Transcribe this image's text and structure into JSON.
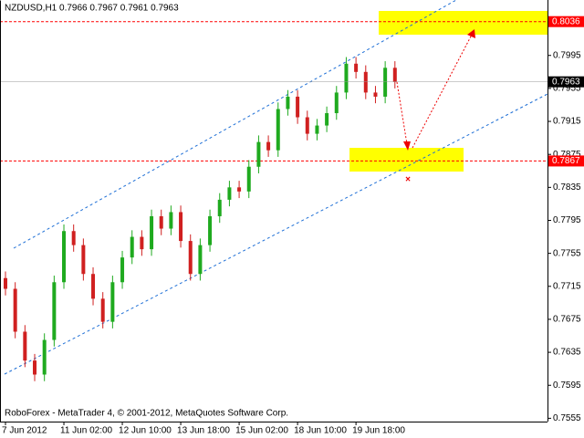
{
  "chart_data": {
    "type": "candlestick",
    "title": "NZDUSD,H1  0.7966 0.7967 0.7961 0.7963",
    "footer": "RoboForex - MetaTrader 4, © 2001-2012, MetaQuotes Software Corp.",
    "categories": [
      "7 Jun 2012",
      null,
      null,
      null,
      null,
      null,
      "11 Jun 02:00",
      null,
      null,
      null,
      null,
      null,
      "12 Jun 10:00",
      null,
      null,
      null,
      null,
      null,
      "13 Jun 18:00",
      null,
      null,
      null,
      null,
      null,
      "15 Jun 02:00",
      null,
      null,
      null,
      null,
      null,
      "18 Jun 10:00",
      null,
      null,
      null,
      null,
      null,
      "19 Jun 18:00",
      null,
      null,
      null,
      null
    ],
    "open": [
      0.7725,
      0.7712,
      0.766,
      0.7625,
      0.7608,
      0.765,
      0.772,
      0.7782,
      0.7765,
      0.773,
      0.77,
      0.7672,
      0.772,
      0.775,
      0.7775,
      0.776,
      0.78,
      0.7785,
      0.7805,
      0.777,
      0.773,
      0.7765,
      0.78,
      0.782,
      0.7835,
      0.783,
      0.786,
      0.789,
      0.788,
      0.793,
      0.7945,
      0.792,
      0.79,
      0.791,
      0.7925,
      0.795,
      0.7985,
      0.7975,
      0.795,
      0.7945,
      0.798
    ],
    "high": [
      0.7733,
      0.772,
      0.7668,
      0.7633,
      0.7658,
      0.7728,
      0.779,
      0.779,
      0.7773,
      0.7738,
      0.7708,
      0.7728,
      0.7758,
      0.7783,
      0.7783,
      0.7808,
      0.7808,
      0.7813,
      0.7813,
      0.7778,
      0.7773,
      0.7808,
      0.7828,
      0.7843,
      0.7843,
      0.7868,
      0.7898,
      0.7898,
      0.7938,
      0.7953,
      0.7953,
      0.7928,
      0.7918,
      0.7933,
      0.7958,
      0.7993,
      0.7993,
      0.7983,
      0.7958,
      0.7988,
      0.7988
    ],
    "low": [
      0.7704,
      0.7652,
      0.7617,
      0.76,
      0.76,
      0.7642,
      0.7712,
      0.7757,
      0.7722,
      0.7692,
      0.7664,
      0.7664,
      0.7712,
      0.7742,
      0.7752,
      0.7752,
      0.7777,
      0.7777,
      0.7762,
      0.7722,
      0.7722,
      0.7757,
      0.7792,
      0.7812,
      0.7822,
      0.7822,
      0.7852,
      0.7872,
      0.7872,
      0.7922,
      0.7912,
      0.7892,
      0.7892,
      0.7902,
      0.7917,
      0.7942,
      0.7967,
      0.7942,
      0.7937,
      0.7937,
      0.7955
    ],
    "close": [
      0.7712,
      0.766,
      0.7625,
      0.7608,
      0.765,
      0.772,
      0.7782,
      0.7765,
      0.773,
      0.77,
      0.7672,
      0.772,
      0.775,
      0.7775,
      0.776,
      0.78,
      0.7785,
      0.7805,
      0.777,
      0.773,
      0.7765,
      0.78,
      0.782,
      0.7835,
      0.783,
      0.786,
      0.789,
      0.788,
      0.793,
      0.7945,
      0.792,
      0.79,
      0.791,
      0.7925,
      0.795,
      0.7985,
      0.7975,
      0.795,
      0.7945,
      0.798,
      0.7963
    ],
    "up_color": "#1faa1f",
    "down_color": "#d02020",
    "ylim": [
      0.7551,
      0.806
    ],
    "yticks": [
      0.7555,
      0.7595,
      0.7635,
      0.7675,
      0.7715,
      0.7755,
      0.7795,
      0.7835,
      0.7875,
      0.7915,
      0.7955,
      0.7995
    ],
    "levels": [
      0.8036,
      0.7867
    ],
    "level_color": "#ff0000",
    "last_price": 0.7963
  }
}
